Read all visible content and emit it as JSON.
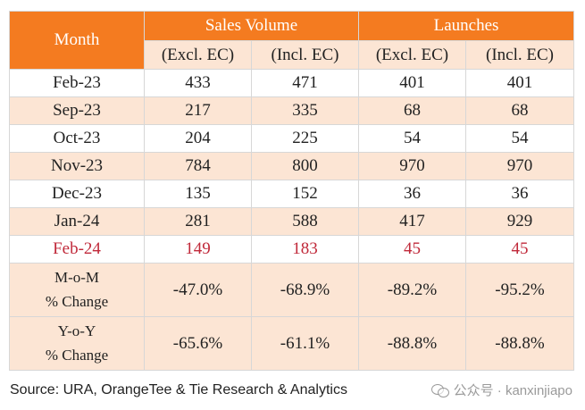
{
  "table": {
    "month_header": "Month",
    "groups": [
      "Sales Volume",
      "Launches"
    ],
    "sub_headers": [
      "(Excl. EC)",
      "(Incl. EC)",
      "(Excl. EC)",
      "(Incl. EC)"
    ],
    "rows": [
      {
        "month": "Feb-23",
        "values": [
          "433",
          "471",
          "401",
          "401"
        ]
      },
      {
        "month": "Sep-23",
        "values": [
          "217",
          "335",
          "68",
          "68"
        ]
      },
      {
        "month": "Oct-23",
        "values": [
          "204",
          "225",
          "54",
          "54"
        ]
      },
      {
        "month": "Nov-23",
        "values": [
          "784",
          "800",
          "970",
          "970"
        ]
      },
      {
        "month": "Dec-23",
        "values": [
          "135",
          "152",
          "36",
          "36"
        ]
      },
      {
        "month": "Jan-24",
        "values": [
          "281",
          "588",
          "417",
          "929"
        ]
      },
      {
        "month": "Feb-24",
        "values": [
          "149",
          "183",
          "45",
          "45"
        ]
      }
    ],
    "mom": {
      "label_top": "M-o-M",
      "label_bottom": "% Change",
      "values": [
        "-47.0%",
        "-68.9%",
        "-89.2%",
        "-95.2%"
      ]
    },
    "yoy": {
      "label_top": "Y-o-Y",
      "label_bottom": "% Change",
      "values": [
        "-65.6%",
        "-61.1%",
        "-88.8%",
        "-88.8%"
      ]
    }
  },
  "source": "Source: URA, OrangeTee & Tie Research & Analytics",
  "watermark": "公众号 · kanxinjiapo",
  "colors": {
    "header_orange": "#f47b20",
    "band_peach": "#fce5d4",
    "highlight_red": "#c0293a"
  }
}
